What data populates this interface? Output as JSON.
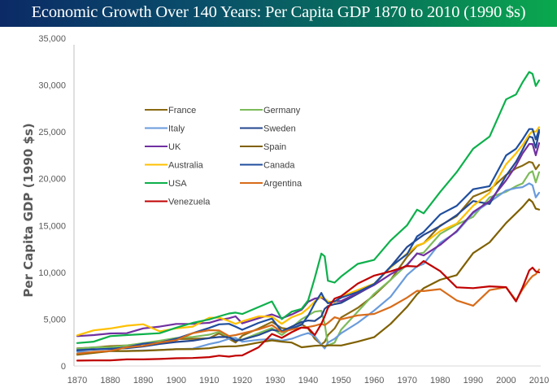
{
  "header": {
    "title": "Economic Growth Over 140 Years: Per Capita GDP 1870 to 2010 (1990 $s)"
  },
  "chart_data": {
    "type": "line",
    "title": "Economic Growth Over 140 Years: Per Capita GDP 1870 to 2010 (1990 $s)",
    "xlabel": "",
    "ylabel": "Per Capita GDP (1990 $s)",
    "xlim": [
      1870,
      2010
    ],
    "ylim": [
      0,
      35000
    ],
    "x_ticks": [
      "1870",
      "1880",
      "1890",
      "1900",
      "1910",
      "1920",
      "1930",
      "1940",
      "1950",
      "1960",
      "1970",
      "1980",
      "1990",
      "2000",
      "2010"
    ],
    "y_ticks": [
      "0",
      "5,000",
      "10,000",
      "15,000",
      "20,000",
      "25,000",
      "30,000",
      "35,000"
    ],
    "grid": false,
    "legend_position": "upper-left-inside",
    "x": [
      1870,
      1875,
      1880,
      1885,
      1890,
      1895,
      1900,
      1905,
      1910,
      1913,
      1916,
      1918,
      1920,
      1925,
      1929,
      1932,
      1935,
      1938,
      1940,
      1942,
      1944,
      1945,
      1946,
      1948,
      1950,
      1955,
      1960,
      1965,
      1970,
      1973,
      1975,
      1980,
      1985,
      1990,
      1995,
      2000,
      2003,
      2005,
      2007,
      2008,
      2009,
      2010
    ],
    "series": [
      {
        "name": "France",
        "color": "#8a6a12",
        "values": [
          1876,
          1980,
          2120,
          2200,
          2376,
          2500,
          2876,
          2900,
          2965,
          3485,
          2900,
          2500,
          3227,
          4000,
          4710,
          4050,
          3900,
          4470,
          4000,
          2900,
          2300,
          2570,
          3300,
          4000,
          5186,
          6200,
          7546,
          9200,
          11660,
          12824,
          13100,
          15000,
          16000,
          18093,
          18800,
          20400,
          21100,
          21400,
          21800,
          21700,
          21000,
          21480
        ]
      },
      {
        "name": "Germany",
        "color": "#7dbb5a",
        "values": [
          1839,
          2000,
          1991,
          2200,
          2428,
          2700,
          2985,
          3100,
          3348,
          3648,
          3100,
          2900,
          2796,
          3500,
          4051,
          3300,
          4100,
          4994,
          5403,
          5800,
          5900,
          4514,
          2200,
          2500,
          3881,
          5800,
          7705,
          9200,
          10839,
          11966,
          12100,
          14100,
          15100,
          15929,
          18000,
          18600,
          19200,
          19500,
          20600,
          20800,
          19600,
          20700
        ]
      },
      {
        "name": "Italy",
        "color": "#6a9bdc",
        "values": [
          1499,
          1450,
          1581,
          1600,
          1667,
          1700,
          1785,
          1850,
          2332,
          2564,
          2900,
          3000,
          2587,
          2800,
          2875,
          2700,
          2900,
          3300,
          3505,
          3200,
          2300,
          1880,
          2500,
          2900,
          3502,
          4600,
          5916,
          7400,
          9719,
          10634,
          10900,
          13149,
          14300,
          16313,
          17500,
          18740,
          19000,
          19100,
          19500,
          19300,
          18000,
          18500
        ]
      },
      {
        "name": "Sweden",
        "color": "#24478f",
        "values": [
          1662,
          1750,
          1846,
          1900,
          2086,
          2350,
          2561,
          2700,
          2980,
          3096,
          3100,
          2700,
          2802,
          3300,
          3869,
          3700,
          4200,
          4700,
          4857,
          4800,
          5300,
          6106,
          6400,
          6600,
          6739,
          7700,
          8688,
          10600,
          12716,
          13494,
          14000,
          14937,
          16100,
          17609,
          17300,
          20321,
          21800,
          23100,
          24500,
          24400,
          23300,
          25000
        ]
      },
      {
        "name": "UK",
        "color": "#7030a0",
        "values": [
          3190,
          3300,
          3477,
          3500,
          4009,
          4200,
          4492,
          4500,
          4611,
          4921,
          5100,
          5300,
          4548,
          5100,
          5503,
          5100,
          5500,
          6000,
          6856,
          7200,
          7300,
          7056,
          6800,
          6900,
          6939,
          7800,
          8645,
          9800,
          10767,
          12025,
          11800,
          12931,
          14400,
          16430,
          17600,
          19817,
          21400,
          22700,
          23700,
          23700,
          22500,
          23800
        ]
      },
      {
        "name": "Spain",
        "color": "#7f6000",
        "values": [
          1207,
          1400,
          1590,
          1600,
          1624,
          1700,
          1786,
          1800,
          1895,
          2056,
          2100,
          2100,
          2177,
          2500,
          2739,
          2600,
          2500,
          2000,
          2080,
          2150,
          2200,
          2111,
          2200,
          2200,
          2189,
          2600,
          3072,
          4500,
          6319,
          7661,
          8300,
          9203,
          9700,
          12055,
          13200,
          15269,
          16300,
          17000,
          17800,
          17500,
          16800,
          16700
        ]
      },
      {
        "name": "Australia",
        "color": "#ffc000",
        "values": [
          3273,
          3800,
          4000,
          4300,
          4458,
          3700,
          4013,
          4200,
          5150,
          5157,
          4800,
          4500,
          4766,
          5300,
          5263,
          4500,
          5200,
          5600,
          6166,
          6900,
          7400,
          7200,
          6900,
          6800,
          7412,
          8100,
          8791,
          10500,
          12024,
          12878,
          13100,
          14412,
          15200,
          17106,
          18500,
          21540,
          22700,
          23600,
          24700,
          25100,
          25000,
          25500
        ]
      },
      {
        "name": "Canada",
        "color": "#1f4e9e",
        "values": [
          1695,
          1800,
          1816,
          2000,
          2378,
          2500,
          2911,
          3500,
          4066,
          4447,
          4500,
          4200,
          3861,
          4600,
          5065,
          3700,
          4000,
          4400,
          5368,
          6700,
          7800,
          7100,
          6700,
          6900,
          7291,
          7900,
          8753,
          10600,
          11943,
          13838,
          14300,
          16176,
          17100,
          18872,
          19200,
          22488,
          23200,
          24200,
          25300,
          25300,
          24200,
          25200
        ]
      },
      {
        "name": "USA",
        "color": "#0db04b",
        "values": [
          2445,
          2600,
          3184,
          3300,
          3392,
          3500,
          4091,
          4600,
          4964,
          5301,
          5600,
          5700,
          5552,
          6300,
          6899,
          5000,
          5800,
          6100,
          7010,
          9400,
          12000,
          11709,
          9100,
          8900,
          9561,
          10900,
          11328,
          13400,
          15030,
          16689,
          16300,
          18577,
          20700,
          23201,
          24500,
          28467,
          29000,
          30300,
          31400,
          31200,
          29900,
          30500
        ]
      },
      {
        "name": "Argentina",
        "color": "#d86c1a",
        "values": [
          1311,
          1500,
          1600,
          2000,
          2152,
          2500,
          2756,
          3500,
          3822,
          3797,
          3200,
          3300,
          3473,
          3900,
          4367,
          3600,
          3900,
          4100,
          4161,
          4300,
          4500,
          4356,
          4600,
          5200,
          4987,
          5400,
          5559,
          6300,
          7302,
          8023,
          8000,
          8206,
          7000,
          6433,
          8100,
          8410,
          7000,
          8200,
          9200,
          9600,
          9800,
          10300
        ]
      },
      {
        "name": "Venezuela",
        "color": "#c00000",
        "values": [
          569,
          600,
          600,
          700,
          700,
          750,
          821,
          850,
          950,
          1104,
          1000,
          1100,
          1129,
          2000,
          3426,
          3000,
          3600,
          4100,
          4045,
          3300,
          4500,
          5300,
          6200,
          7200,
          7462,
          8800,
          9646,
          10100,
          10672,
          10625,
          11200,
          10139,
          8400,
          8313,
          8500,
          8415,
          6900,
          8400,
          10200,
          10500,
          10100,
          10000
        ]
      }
    ]
  }
}
